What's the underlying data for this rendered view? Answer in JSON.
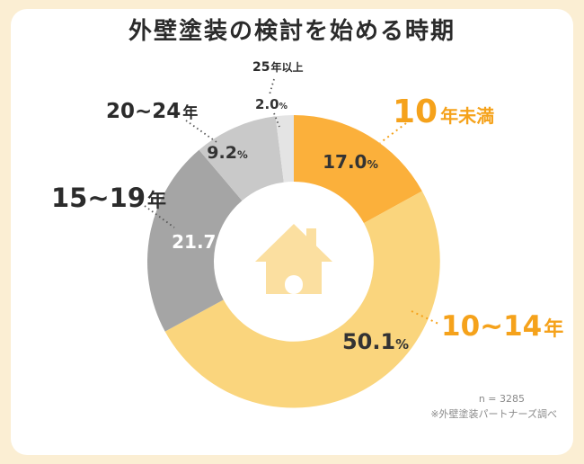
{
  "page": {
    "title": "外壁塗装の検討を始める時期",
    "percent_sign": "%",
    "footnote": {
      "sample": "n = 3285",
      "source": "※外壁塗装パートナーズ調べ"
    }
  },
  "colors": {
    "background": "#FBEED3",
    "card": "#FFFFFF",
    "accent_orange": "#F5A21B",
    "pale_yellow_slice": "#FAD57D",
    "orange_slice": "#FBB03B",
    "gray_slice": "#A5A5A5",
    "light_gray_slice": "#C9C9C9",
    "lighter_gray_slice": "#E4E4E4",
    "house_icon": "#FBDFA0",
    "text_dark": "#2b2b2b",
    "text_gray": "#8A8A8A"
  },
  "chart_data": {
    "type": "pie",
    "subtype": "donut",
    "title": "外壁塗装の検討を始める時期",
    "start_angle_deg": 0,
    "direction": "clockwise",
    "center_icon": "house",
    "legend_position": "around-slices",
    "segments": [
      {
        "label": "10年未満",
        "label_big": "10",
        "label_small": "年未満",
        "value": 17.0,
        "value_str": "17.0",
        "color": "#FBB03B",
        "label_color": "#F5A21B"
      },
      {
        "label": "10~14年",
        "label_big": "10~14",
        "label_small": "年",
        "value": 50.1,
        "value_str": "50.1",
        "color": "#FAD57D",
        "label_color": "#F5A21B"
      },
      {
        "label": "15~19年",
        "label_big": "15~19",
        "label_small": "年",
        "value": 21.7,
        "value_str": "21.7",
        "color": "#A5A5A5",
        "label_color": "#2b2b2b"
      },
      {
        "label": "20~24年",
        "label_big": "20~24",
        "label_small": "年",
        "value": 9.2,
        "value_str": "9.2",
        "color": "#C9C9C9",
        "label_color": "#2b2b2b"
      },
      {
        "label": "25年以上",
        "label_big": "25",
        "label_small": "年以上",
        "value": 2.0,
        "value_str": "2.0",
        "color": "#E4E4E4",
        "label_color": "#2b2b2b"
      }
    ],
    "sample_note": "n = 3285",
    "source_note": "※外壁塗装パートナーズ調べ"
  }
}
